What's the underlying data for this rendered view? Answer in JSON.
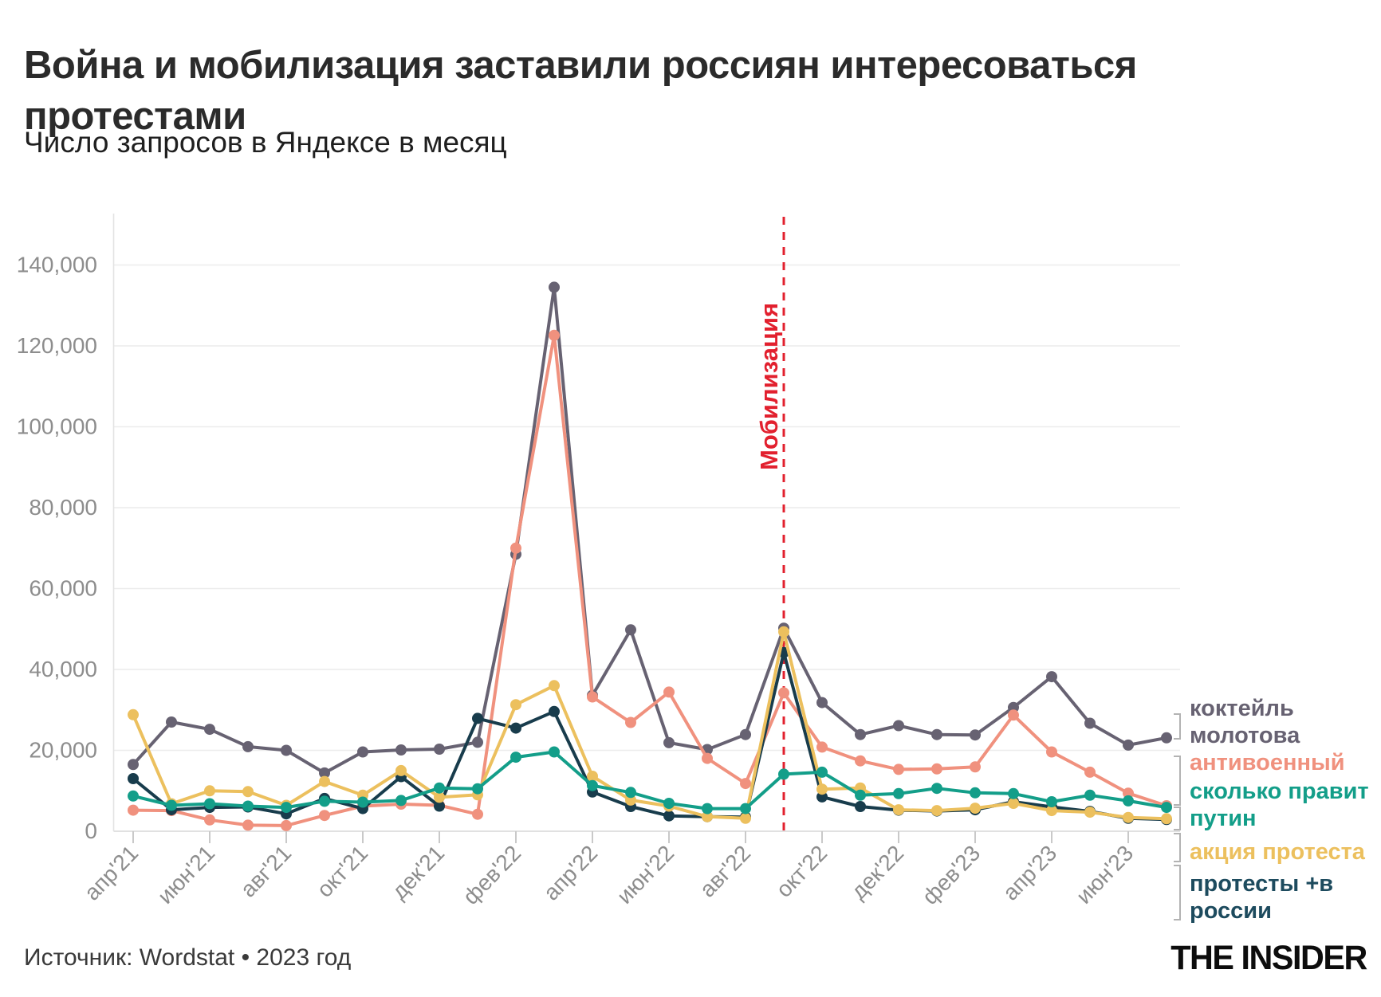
{
  "header": {
    "title": "Война и мобилизация заставили россиян интересоваться протестами",
    "subtitle": "Число запросов в Яндексе в месяц"
  },
  "footer": {
    "source": "Источник: Wordstat • 2023 год",
    "logo": "THE INSIDER"
  },
  "chart_data": {
    "type": "line",
    "title": "Число запросов в Яндексе в месяц",
    "x_tick_labels": [
      "апр'21",
      "июн'21",
      "авг'21",
      "окт'21",
      "дек'21",
      "фев'22",
      "апр'22",
      "июн'22",
      "авг'22",
      "окт'22",
      "дек'22",
      "фев'23",
      "апр'23",
      "июн'23"
    ],
    "months_span": "апрель 2021 — июль 2023, 28 точек (ежемесячно)",
    "yticks": [
      0,
      20000,
      40000,
      60000,
      80000,
      100000,
      120000,
      140000
    ],
    "ylim": [
      0,
      150000
    ],
    "grid": "horizontal",
    "legend_position": "right",
    "annotation": {
      "label": "Мобилизация",
      "month_index": 17,
      "color": "#e2202e"
    },
    "series": [
      {
        "id": "kokteyl-molotova",
        "name": "коктейль молотова",
        "legend_lines": [
          "коктейль",
          "молотова"
        ],
        "color": "#676272",
        "values": [
          16500,
          27000,
          25200,
          20900,
          20000,
          14400,
          19600,
          20100,
          20300,
          22000,
          68500,
          134500,
          33600,
          49800,
          21900,
          20200,
          23900,
          50200,
          31800,
          23900,
          26100,
          23900,
          23800,
          30600,
          38200,
          26700,
          21300,
          23100
        ]
      },
      {
        "id": "antivoennyy",
        "name": "антивоенный",
        "legend_lines": [
          "антивоенный"
        ],
        "color": "#f0917e",
        "values": [
          5200,
          5100,
          2800,
          1500,
          1400,
          3900,
          6200,
          6700,
          6400,
          4200,
          70000,
          122600,
          33200,
          26900,
          34400,
          18000,
          11800,
          34200,
          20800,
          17400,
          15300,
          15400,
          15900,
          28700,
          19600,
          14600,
          9400,
          6300
        ]
      },
      {
        "id": "skolko-pravit-putin",
        "name": "сколько правит путин",
        "legend_lines": [
          "сколько правит",
          "путин"
        ],
        "color": "#139e89",
        "values": [
          8700,
          6400,
          6800,
          6200,
          5900,
          7400,
          7200,
          7600,
          10700,
          10500,
          18300,
          19600,
          11300,
          9600,
          6900,
          5600,
          5600,
          14100,
          14600,
          8900,
          9300,
          10600,
          9500,
          9300,
          7300,
          8900,
          7500,
          5900
        ]
      },
      {
        "id": "aktsiya-protesta",
        "name": "акция протеста",
        "legend_lines": [
          "акция протеста"
        ],
        "color": "#ecc05e",
        "values": [
          28800,
          6800,
          10000,
          9800,
          6400,
          12300,
          8900,
          15000,
          8400,
          9000,
          31300,
          36000,
          13600,
          7700,
          6200,
          3600,
          3200,
          49300,
          10400,
          10700,
          5300,
          5100,
          5700,
          6900,
          5100,
          4700,
          3400,
          3100
        ]
      },
      {
        "id": "protesty-v-rossii",
        "name": "протесты +в россии",
        "legend_lines": [
          "протесты +в",
          "россии"
        ],
        "color": "#183c4c",
        "legend_color": "#1d4b5e",
        "values": [
          13000,
          5300,
          5900,
          6000,
          4300,
          8100,
          5600,
          13500,
          6200,
          27900,
          25500,
          29600,
          9700,
          6100,
          3800,
          3600,
          3500,
          44200,
          8500,
          6100,
          5200,
          5000,
          5300,
          7300,
          6000,
          4900,
          3200,
          2900
        ]
      }
    ]
  }
}
